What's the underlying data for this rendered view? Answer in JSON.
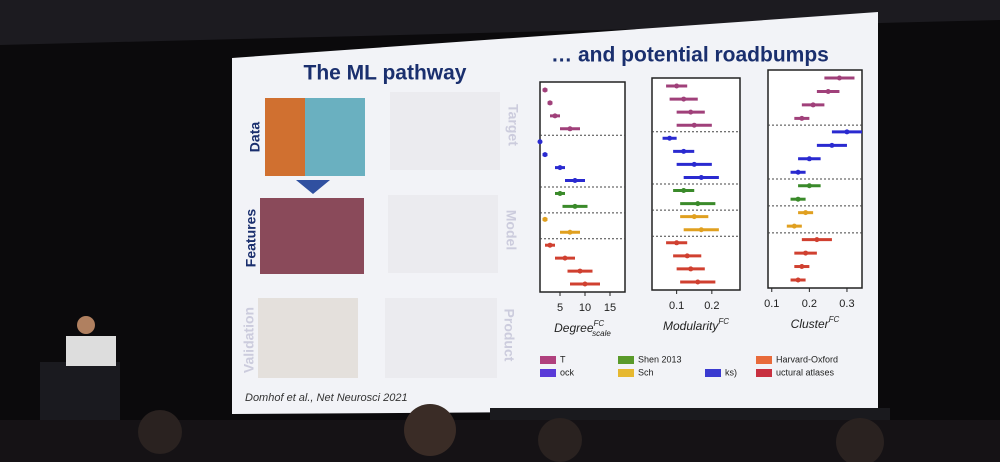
{
  "slide": {
    "title_left": "The ML pathway",
    "title_right": "… and potential roadbumps",
    "row_labels": [
      "Data",
      "Features",
      "Validation"
    ],
    "col_labels": [
      "Target",
      "Model",
      "Product"
    ],
    "citation": "Domhof et al., Net Neurosci 2021",
    "legend": [
      {
        "label": "T",
        "color": "#b0407e"
      },
      {
        "label": "ock",
        "color": "#5a3ad8"
      },
      {
        "label": "Shen 2013",
        "color": "#5a9a2a"
      },
      {
        "label": "Sch",
        "color": "#e6b830"
      },
      {
        "label": "ks)",
        "color": "#3a3ad0"
      },
      {
        "label": "Harvard-Oxford",
        "color": "#e86a3a"
      },
      {
        "label": "uctural atlases",
        "color": "#c83040"
      }
    ]
  },
  "chart_data": [
    {
      "type": "errorbar",
      "xlabel": "Degree",
      "xlabel_sup": "FC",
      "xlabel_sub": "scale",
      "xlim": [
        1,
        18
      ],
      "xticks": [
        5,
        10,
        15
      ],
      "series": [
        {
          "color": "#a0407a",
          "values": [
            2,
            3,
            4,
            7
          ],
          "errors": [
            0.5,
            0.5,
            1,
            2
          ]
        },
        {
          "color": "#2a2ad0",
          "values": [
            1,
            2,
            5,
            8
          ],
          "errors": [
            0.3,
            0.5,
            1,
            2
          ]
        },
        {
          "color": "#3a8a2a",
          "values": [
            5,
            8
          ],
          "errors": [
            1,
            2.5
          ]
        },
        {
          "color": "#e0a020",
          "values": [
            2,
            7
          ],
          "errors": [
            0.5,
            2
          ]
        },
        {
          "color": "#d04030",
          "values": [
            3,
            6,
            9,
            10
          ],
          "errors": [
            1,
            2,
            2.5,
            3
          ]
        }
      ]
    },
    {
      "type": "errorbar",
      "xlabel": "Modularity",
      "xlabel_sup": "FC",
      "xlim": [
        0.03,
        0.28
      ],
      "xticks": [
        0.1,
        0.2
      ],
      "series": [
        {
          "color": "#a0407a",
          "values": [
            0.1,
            0.12,
            0.14,
            0.15
          ],
          "errors": [
            0.03,
            0.04,
            0.04,
            0.05
          ]
        },
        {
          "color": "#2a2ad0",
          "values": [
            0.08,
            0.12,
            0.15,
            0.17
          ],
          "errors": [
            0.02,
            0.03,
            0.05,
            0.05
          ]
        },
        {
          "color": "#3a8a2a",
          "values": [
            0.12,
            0.16
          ],
          "errors": [
            0.03,
            0.05
          ]
        },
        {
          "color": "#e0a020",
          "values": [
            0.15,
            0.17
          ],
          "errors": [
            0.04,
            0.05
          ]
        },
        {
          "color": "#d04030",
          "values": [
            0.1,
            0.13,
            0.14,
            0.16
          ],
          "errors": [
            0.03,
            0.04,
            0.04,
            0.05
          ]
        }
      ]
    },
    {
      "type": "errorbar",
      "xlabel": "Cluster",
      "xlabel_sup": "FC",
      "xlim": [
        0.09,
        0.34
      ],
      "xticks": [
        0.1,
        0.2,
        0.3
      ],
      "series": [
        {
          "color": "#a0407a",
          "values": [
            0.28,
            0.25,
            0.21,
            0.18
          ],
          "errors": [
            0.04,
            0.03,
            0.03,
            0.02
          ]
        },
        {
          "color": "#2a2ad0",
          "values": [
            0.3,
            0.26,
            0.2,
            0.17
          ],
          "errors": [
            0.04,
            0.04,
            0.03,
            0.02
          ]
        },
        {
          "color": "#3a8a2a",
          "values": [
            0.2,
            0.17
          ],
          "errors": [
            0.03,
            0.02
          ]
        },
        {
          "color": "#e0a020",
          "values": [
            0.19,
            0.16
          ],
          "errors": [
            0.02,
            0.02
          ]
        },
        {
          "color": "#d04030",
          "values": [
            0.22,
            0.19,
            0.18,
            0.17
          ],
          "errors": [
            0.04,
            0.03,
            0.02,
            0.02
          ]
        }
      ]
    }
  ]
}
